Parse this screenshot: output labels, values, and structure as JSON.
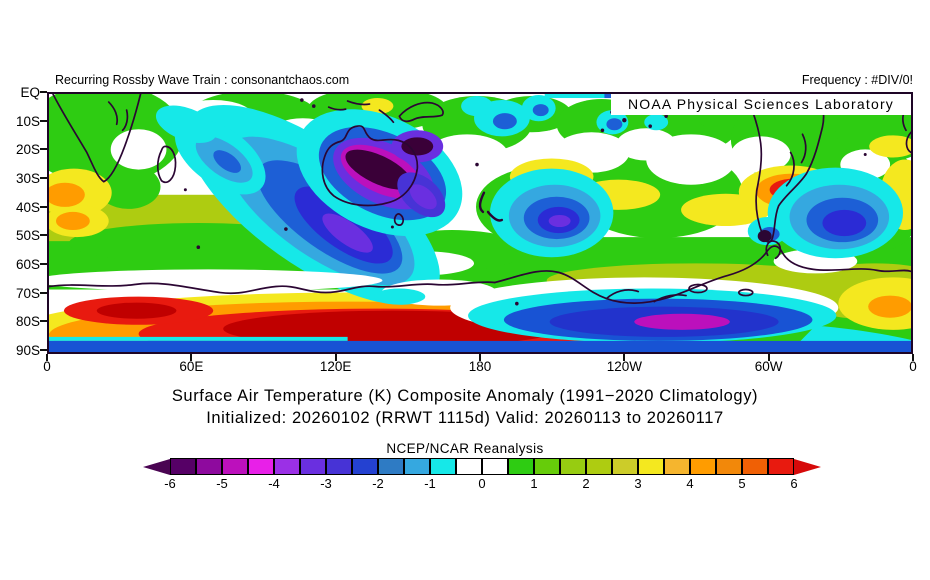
{
  "header": {
    "left": "Recurring Rossby Wave Train : consonantchaos.com",
    "right": "Frequency : #DIV/0!"
  },
  "map": {
    "watermark": "NOAA Physical Sciences Laboratory"
  },
  "title": {
    "line1": "Surface Air Temperature (K) Composite Anomaly (1991−2020 Climatology)",
    "line2": "Initialized: 20260102 (RRWT 1115d) Valid: 20260113 to 20260117"
  },
  "axes": {
    "lat_ticks": [
      "EQ",
      "10S",
      "20S",
      "30S",
      "40S",
      "50S",
      "60S",
      "70S",
      "80S",
      "90S"
    ],
    "lon_ticks": [
      "0",
      "60E",
      "120E",
      "180",
      "120W",
      "60W",
      "0"
    ]
  },
  "colorbar": {
    "label": "NCEP/NCAR Reanalysis",
    "tick_labels": [
      "-6",
      "-5",
      "-4",
      "-3",
      "-2",
      "-1",
      "0",
      "1",
      "2",
      "3",
      "4",
      "5",
      "6"
    ],
    "cell_colors": [
      "#560066",
      "#8E0A9E",
      "#BC10BC",
      "#E820E8",
      "#9B30E6",
      "#6A2FE0",
      "#4733D6",
      "#2441D1",
      "#2E7BC4",
      "#35A8E0",
      "#16E8E8",
      "#FFFFFF",
      "#FFFFFF",
      "#2ECC12",
      "#66CC0A",
      "#97CC11",
      "#AECC11",
      "#CCCC29",
      "#F4E81F",
      "#F5B52E",
      "#FF9C00",
      "#F2880A",
      "#F06005",
      "#E81A0F"
    ],
    "under_arrow_color": "#4A0452",
    "over_arrow_color": "#D60A0A"
  },
  "chart_data": {
    "type": "heatmap",
    "title": "Surface Air Temperature (K) Composite Anomaly (1991−2020 Climatology)",
    "subtitle": "Initialized: 20260102 (RRWT 1115d) Valid: 20260113 to 20260117",
    "variable": "Surface Air Temperature Composite Anomaly",
    "units": "K",
    "climatology": "1991−2020",
    "dataset_label": "NCEP/NCAR Reanalysis",
    "provider": "NOAA Physical Sciences Laboratory",
    "frequency_note": "Frequency : #DIV/0!",
    "projection": "cylindrical lat-lon, Southern Hemisphere",
    "x_axis": {
      "ticks": [
        "0",
        "60E",
        "120E",
        "180",
        "120W",
        "60W",
        "0"
      ],
      "range_deg": [
        0,
        360
      ]
    },
    "y_axis": {
      "ticks": [
        "EQ",
        "10S",
        "20S",
        "30S",
        "40S",
        "50S",
        "60S",
        "70S",
        "80S",
        "90S"
      ],
      "range": [
        "EQ",
        "90S"
      ]
    },
    "colorbar": {
      "min": -6,
      "max": 6,
      "cell_step": 0.5,
      "tick_values": [
        -6,
        -5,
        -4,
        -3,
        -2,
        -1,
        0,
        1,
        2,
        3,
        4,
        5,
        6
      ],
      "cell_colors": [
        "#560066",
        "#8E0A9E",
        "#BC10BC",
        "#E820E8",
        "#9B30E6",
        "#6A2FE0",
        "#4733D6",
        "#2441D1",
        "#2E7BC4",
        "#35A8E0",
        "#16E8E8",
        "#FFFFFF",
        "#FFFFFF",
        "#2ECC12",
        "#66CC0A",
        "#97CC11",
        "#AECC11",
        "#CCCC29",
        "#F4E81F",
        "#F5B52E",
        "#FF9C00",
        "#F2880A",
        "#F06005",
        "#E81A0F"
      ]
    },
    "anomaly_features": [
      {
        "region": "Australia interior",
        "approx_lon": "115E-150E",
        "approx_lat": "15S-40S",
        "value_K": -6
      },
      {
        "region": "SE Indian Ocean southwest of Australia",
        "approx_lon": "75E-140E",
        "approx_lat": "25S-55S",
        "value_K": -3.5
      },
      {
        "region": "Western Indian Ocean near Madagascar",
        "approx_lon": "50E-75E",
        "approx_lat": "10S-30S",
        "value_K": -2.5
      },
      {
        "region": "Central South Pacific",
        "approx_lon": "155W-130W",
        "approx_lat": "40S-55S",
        "value_K": -3.5
      },
      {
        "region": "South Atlantic",
        "approx_lon": "35W-5W",
        "approx_lat": "35S-55S",
        "value_K": -3.5
      },
      {
        "region": "Ross/Amundsen Sea Antarctic coast",
        "approx_lon": "170E-90W",
        "approx_lat": "70S-85S",
        "value_K": -4.5
      },
      {
        "region": "East Antarctica interior",
        "approx_lon": "0-170E",
        "approx_lat": "72S-88S",
        "value_K": 6
      },
      {
        "region": "SE South America (Argentina/Uruguay)",
        "approx_lon": "65W-50W",
        "approx_lat": "28S-40S",
        "value_K": 5.5
      },
      {
        "region": "SW Africa / SE Atlantic coast",
        "approx_lon": "0-20E",
        "approx_lat": "25S-45S",
        "value_K": 4
      },
      {
        "region": "Subantarctic belt",
        "approx_lon": "all",
        "approx_lat": "50S-65S",
        "value_K": 1.5
      },
      {
        "region": "Polar cap edge near 90S",
        "approx_lon": "all",
        "approx_lat": "88S-90S",
        "value_K": -2
      }
    ]
  }
}
